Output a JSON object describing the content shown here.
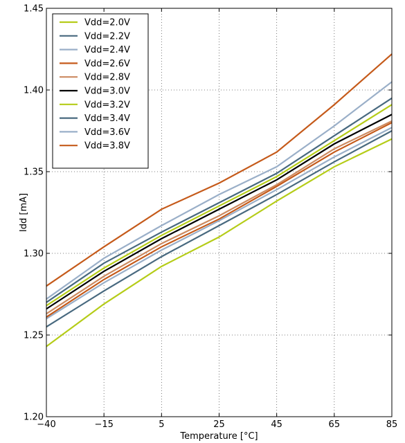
{
  "chart_data": {
    "type": "line",
    "xlabel": "Temperature [°C]",
    "ylabel": "Idd [mA]",
    "x": [
      -40,
      -15,
      5,
      25,
      45,
      65,
      85
    ],
    "x_tick_labels": [
      "−40",
      "−15",
      "5",
      "25",
      "45",
      "65",
      "85"
    ],
    "x_scale": "categorical-even-spacing",
    "ylim": [
      1.2,
      1.45
    ],
    "y_ticks": [
      1.2,
      1.25,
      1.3,
      1.35,
      1.4,
      1.45
    ],
    "y_tick_labels": [
      "1.20",
      "1.25",
      "1.30",
      "1.35",
      "1.40",
      "1.45"
    ],
    "grid": true,
    "grid_style": "dotted",
    "legend_position": "top-left",
    "series": [
      {
        "name": "Vdd=2.0V",
        "color": "#b5cc18",
        "values": [
          1.243,
          1.269,
          1.292,
          1.31,
          1.332,
          1.353,
          1.37
        ]
      },
      {
        "name": "Vdd=2.2V",
        "color": "#48697f",
        "values": [
          1.255,
          1.277,
          1.298,
          1.317,
          1.336,
          1.356,
          1.375
        ]
      },
      {
        "name": "Vdd=2.4V",
        "color": "#9aafc8",
        "values": [
          1.26,
          1.282,
          1.302,
          1.32,
          1.339,
          1.359,
          1.377
        ]
      },
      {
        "name": "Vdd=2.6V",
        "color": "#c55a1a",
        "values": [
          1.261,
          1.284,
          1.304,
          1.321,
          1.341,
          1.362,
          1.38
        ]
      },
      {
        "name": "Vdd=2.8V",
        "color": "#cc8a60",
        "values": [
          1.263,
          1.286,
          1.306,
          1.323,
          1.342,
          1.364,
          1.381
        ]
      },
      {
        "name": "Vdd=3.0V",
        "color": "#000000",
        "values": [
          1.266,
          1.289,
          1.309,
          1.327,
          1.345,
          1.367,
          1.385
        ]
      },
      {
        "name": "Vdd=3.2V",
        "color": "#b5cc18",
        "values": [
          1.268,
          1.291,
          1.311,
          1.329,
          1.347,
          1.369,
          1.391
        ]
      },
      {
        "name": "Vdd=3.4V",
        "color": "#48697f",
        "values": [
          1.27,
          1.294,
          1.313,
          1.331,
          1.349,
          1.372,
          1.395
        ]
      },
      {
        "name": "Vdd=3.6V",
        "color": "#9aafc8",
        "values": [
          1.272,
          1.297,
          1.317,
          1.336,
          1.353,
          1.378,
          1.405
        ]
      },
      {
        "name": "Vdd=3.8V",
        "color": "#c55a1a",
        "values": [
          1.28,
          1.304,
          1.327,
          1.343,
          1.362,
          1.391,
          1.422
        ]
      }
    ]
  }
}
